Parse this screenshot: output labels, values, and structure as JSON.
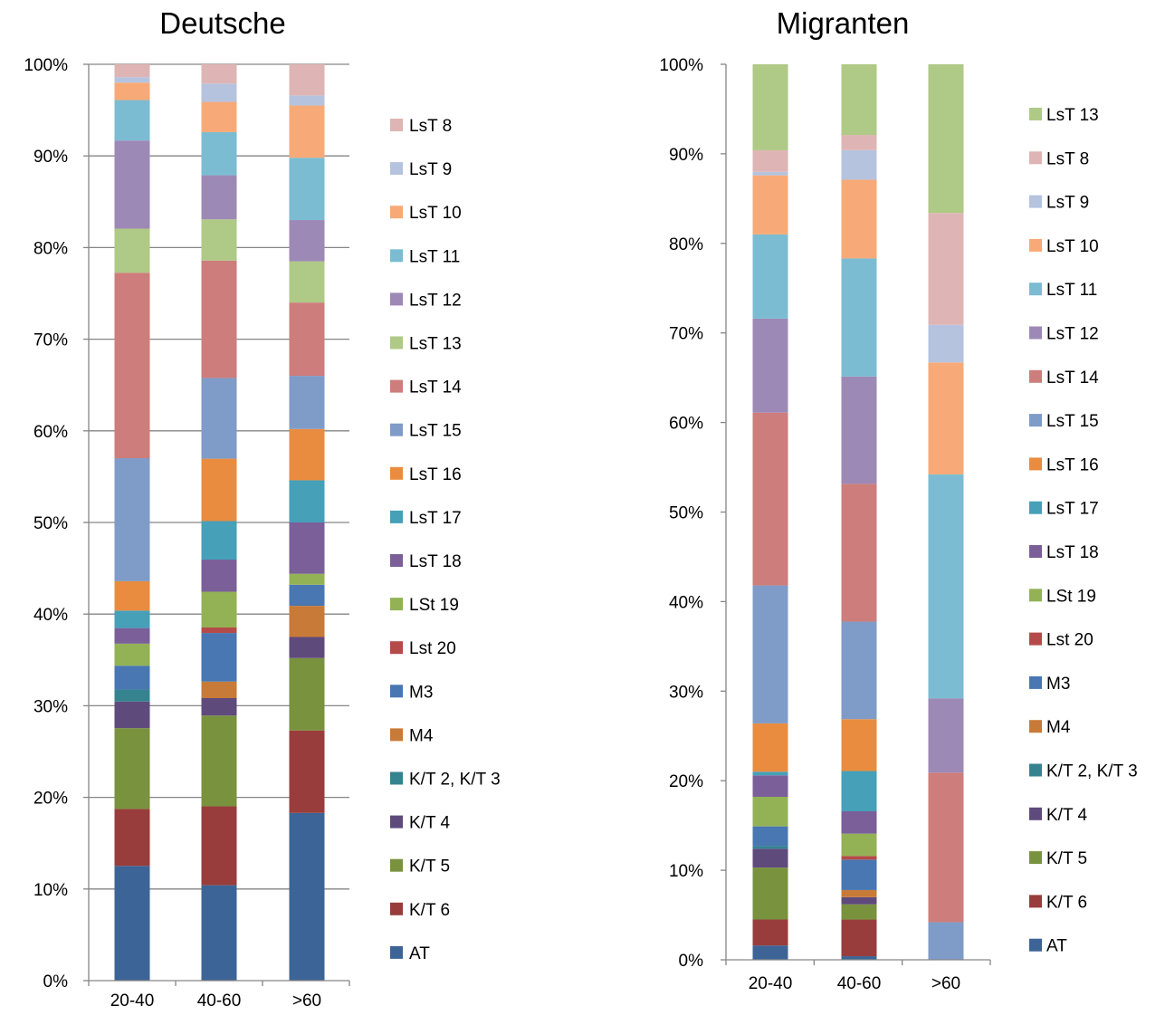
{
  "chart_data": [
    {
      "type": "bar",
      "stacked": true,
      "normalized": true,
      "title": "Deutsche",
      "categories": [
        "20-40",
        "40-60",
        ">60"
      ],
      "ylim": [
        0,
        100
      ],
      "yticks": [
        "0%",
        "10%",
        "20%",
        "30%",
        "40%",
        "50%",
        "60%",
        "70%",
        "80%",
        "90%",
        "100%"
      ],
      "grid": true,
      "legend_position": "right",
      "series": [
        {
          "name": "AT",
          "color": "#3C6496",
          "values": [
            12.5,
            10.4,
            18.3
          ]
        },
        {
          "name": "K/T 6",
          "color": "#983D3B",
          "values": [
            6.2,
            8.6,
            9.0
          ]
        },
        {
          "name": "K/T 5",
          "color": "#79923E",
          "values": [
            8.8,
            9.9,
            7.9
          ]
        },
        {
          "name": "K/T 4",
          "color": "#5F4A7C",
          "values": [
            2.9,
            1.9,
            2.3
          ]
        },
        {
          "name": "K/T 2, K/T 3",
          "color": "#35838F",
          "values": [
            1.3,
            0.0,
            0.0
          ]
        },
        {
          "name": "M4",
          "color": "#C87A38",
          "values": [
            0.0,
            1.8,
            3.4
          ]
        },
        {
          "name": "M3",
          "color": "#4877B2",
          "values": [
            2.6,
            5.3,
            2.3
          ]
        },
        {
          "name": "Lst 20",
          "color": "#B54B49",
          "values": [
            0.0,
            0.6,
            0.0
          ]
        },
        {
          "name": "LSt 19",
          "color": "#93B255",
          "values": [
            2.4,
            3.9,
            1.2
          ]
        },
        {
          "name": "LsT 18",
          "color": "#7A5F99",
          "values": [
            1.7,
            3.5,
            5.6
          ]
        },
        {
          "name": "LsT 17",
          "color": "#45A0B8",
          "values": [
            1.9,
            4.2,
            4.6
          ]
        },
        {
          "name": "LsT 16",
          "color": "#E98C3F",
          "values": [
            3.2,
            6.8,
            5.6
          ]
        },
        {
          "name": "LsT 15",
          "color": "#7F9BC8",
          "values": [
            13.4,
            8.8,
            5.8
          ]
        },
        {
          "name": "LsT 14",
          "color": "#CD7D7B",
          "values": [
            20.2,
            12.8,
            8.0
          ]
        },
        {
          "name": "LsT 13",
          "color": "#AFC986",
          "values": [
            4.8,
            4.5,
            4.5
          ]
        },
        {
          "name": "LsT 12",
          "color": "#9D89B6",
          "values": [
            9.6,
            4.8,
            4.5
          ]
        },
        {
          "name": "LsT 11",
          "color": "#7BBCD2",
          "values": [
            4.4,
            4.7,
            6.8
          ]
        },
        {
          "name": "LsT 10",
          "color": "#F7AA77",
          "values": [
            1.9,
            3.3,
            5.7
          ]
        },
        {
          "name": "LsT 9",
          "color": "#B5C3DF",
          "values": [
            0.6,
            2.0,
            1.1
          ]
        },
        {
          "name": "LsT 8",
          "color": "#DEB5B4",
          "values": [
            1.4,
            2.1,
            3.4
          ]
        }
      ],
      "legend_order": [
        "LsT 8",
        "LsT 9",
        "LsT 10",
        "LsT 11",
        "LsT 12",
        "LsT 13",
        "LsT 14",
        "LsT 15",
        "LsT 16",
        "LsT 17",
        "LsT 18",
        "LSt 19",
        "Lst 20",
        "M3",
        "M4",
        "K/T 2, K/T 3",
        "K/T 4",
        "K/T 5",
        "K/T 6",
        "AT"
      ]
    },
    {
      "type": "bar",
      "stacked": true,
      "normalized": true,
      "title": "Migranten",
      "categories": [
        "20-40",
        "40-60",
        ">60"
      ],
      "ylim": [
        0,
        100
      ],
      "yticks": [
        "0%",
        "10%",
        "20%",
        "30%",
        "40%",
        "50%",
        "60%",
        "70%",
        "80%",
        "90%",
        "100%"
      ],
      "grid": false,
      "legend_position": "right",
      "series": [
        {
          "name": "AT",
          "color": "#3C6496",
          "values": [
            1.6,
            0.4,
            0.0
          ]
        },
        {
          "name": "K/T 6",
          "color": "#983D3B",
          "values": [
            2.9,
            4.1,
            0.0
          ]
        },
        {
          "name": "K/T 5",
          "color": "#79923E",
          "values": [
            5.8,
            1.7,
            0.0
          ]
        },
        {
          "name": "K/T 4",
          "color": "#5F4A7C",
          "values": [
            2.1,
            0.8,
            0.0
          ]
        },
        {
          "name": "K/T 2, K/T 3",
          "color": "#35838F",
          "values": [
            0.3,
            0.0,
            0.0
          ]
        },
        {
          "name": "M4",
          "color": "#C87A38",
          "values": [
            0.0,
            0.8,
            0.0
          ]
        },
        {
          "name": "M3",
          "color": "#4877B2",
          "values": [
            2.2,
            3.4,
            0.0
          ]
        },
        {
          "name": "Lst 20",
          "color": "#B54B49",
          "values": [
            0.0,
            0.4,
            0.0
          ]
        },
        {
          "name": "LSt 19",
          "color": "#93B255",
          "values": [
            3.3,
            2.5,
            0.0
          ]
        },
        {
          "name": "LsT 18",
          "color": "#7A5F99",
          "values": [
            2.4,
            2.5,
            0.0
          ]
        },
        {
          "name": "LsT 17",
          "color": "#45A0B8",
          "values": [
            0.4,
            4.5,
            0.0
          ]
        },
        {
          "name": "LsT 16",
          "color": "#E98C3F",
          "values": [
            5.4,
            5.8,
            0.0
          ]
        },
        {
          "name": "LsT 15",
          "color": "#7F9BC8",
          "values": [
            15.4,
            10.9,
            4.2
          ]
        },
        {
          "name": "LsT 14",
          "color": "#CD7D7B",
          "values": [
            19.3,
            15.4,
            16.7
          ]
        },
        {
          "name": "LsT 12",
          "color": "#9D89B6",
          "values": [
            10.5,
            12.0,
            8.3
          ]
        },
        {
          "name": "LsT 11",
          "color": "#7BBCD2",
          "values": [
            9.4,
            13.2,
            25.0
          ]
        },
        {
          "name": "LsT 10",
          "color": "#F7AA77",
          "values": [
            6.6,
            8.8,
            12.5
          ]
        },
        {
          "name": "LsT 9",
          "color": "#B5C3DF",
          "values": [
            0.4,
            3.3,
            4.2
          ]
        },
        {
          "name": "LsT 8",
          "color": "#DEB5B4",
          "values": [
            2.4,
            1.7,
            12.5
          ]
        },
        {
          "name": "LsT 13",
          "color": "#AFC986",
          "values": [
            9.6,
            7.9,
            16.6
          ]
        }
      ],
      "legend_order": [
        "LsT 13",
        "LsT 8",
        "LsT 9",
        "LsT 10",
        "LsT 11",
        "LsT 12",
        "LsT 14",
        "LsT 15",
        "LsT 16",
        "LsT 17",
        "LsT 18",
        "LSt 19",
        "Lst 20",
        "M3",
        "M4",
        "K/T 2, K/T 3",
        "K/T 4",
        "K/T 5",
        "K/T 6",
        "AT"
      ]
    }
  ]
}
